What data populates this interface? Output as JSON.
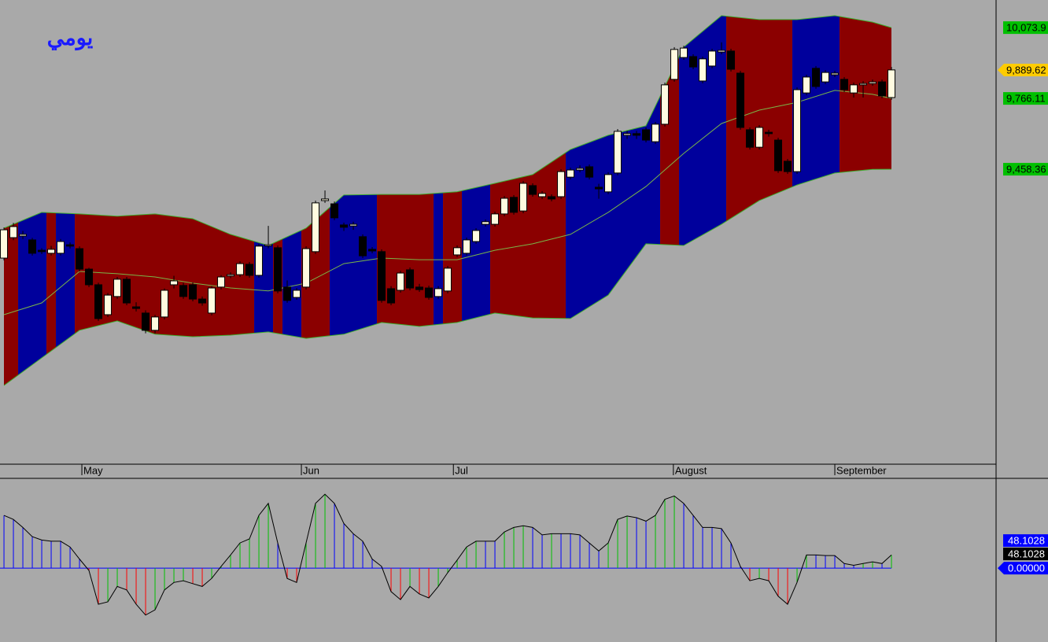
{
  "chart_data": [
    {
      "type": "candlestick",
      "title": "يومي",
      "xlim": [
        -0.42,
        105.08
      ],
      "ylim": [
        8176,
        10194
      ],
      "xticks": [
        {
          "value": 8.25,
          "label": "May"
        },
        {
          "value": 31.5,
          "label": "Jun"
        },
        {
          "value": 47.6,
          "label": "Jul"
        },
        {
          "value": 70.9,
          "label": "August"
        },
        {
          "value": 88,
          "label": "September"
        }
      ],
      "yticks": [
        {
          "value": 10073.9,
          "label": "10,073.9"
        },
        {
          "value": 9766.11,
          "label": "9,766.11"
        },
        {
          "value": 9458.36,
          "label": "9,458.36"
        }
      ],
      "last_price": {
        "value": 9889.62,
        "label": "9,889.62"
      },
      "colors": {
        "up": "#fffbe0",
        "down": "#000000",
        "band_up": "#00009c",
        "band_down": "#8b0000",
        "band_edge": "#3fae2f",
        "middle": "#7ab648",
        "tick_label_box": "#00c000",
        "last_price_box": "#ffcc00"
      },
      "open": [
        9072,
        9161,
        9168,
        9151,
        9106,
        9093,
        9093,
        9130,
        9113,
        9024,
        8956,
        8826,
        8905,
        8980,
        8860,
        8833,
        8758,
        8816,
        8956,
        8953,
        8956,
        8894,
        8833,
        8946,
        8994,
        9000,
        9045,
        8997,
        9127,
        9117,
        8946,
        8901,
        8946,
        9100,
        9322,
        9308,
        9216,
        9212,
        9165,
        9110,
        9100,
        8939,
        8932,
        9021,
        8946,
        8942,
        8905,
        8929,
        9086,
        9093,
        9144,
        9219,
        9219,
        9264,
        9336,
        9277,
        9387,
        9339,
        9339,
        9339,
        9424,
        9455,
        9469,
        9380,
        9360,
        9442,
        9606,
        9613,
        9630,
        9578,
        9654,
        9849,
        9944,
        9948,
        9842,
        9907,
        9968,
        9972,
        9876,
        9630,
        9554,
        9619,
        9585,
        9493,
        9448,
        9790,
        9897,
        9838,
        9869,
        9849,
        9790,
        9825,
        9831,
        9838,
        9770
      ],
      "high": [
        9205,
        9225,
        9190,
        9160,
        9115,
        9125,
        9155,
        9140,
        9123,
        9030,
        8965,
        8920,
        8990,
        8990,
        8880,
        8845,
        8825,
        8940,
        8995,
        8965,
        8966,
        8905,
        8950,
        8998,
        9010,
        9058,
        9055,
        9134,
        9212,
        9127,
        8975,
        8942,
        9123,
        9322,
        9366,
        9318,
        9226,
        9230,
        9175,
        9120,
        9110,
        8950,
        9017,
        9031,
        8960,
        8952,
        8950,
        9038,
        9127,
        9161,
        9202,
        9240,
        9274,
        9342,
        9346,
        9407,
        9397,
        9363,
        9349,
        9458,
        9465,
        9475,
        9479,
        9395,
        9445,
        9633,
        9625,
        9625,
        9640,
        9664,
        9835,
        9989,
        9995,
        9958,
        9948,
        9982,
        10010,
        9982,
        9886,
        9640,
        9650,
        9630,
        9595,
        9503,
        9814,
        9869,
        9907,
        9889,
        9886,
        9859,
        9835,
        9841,
        9848,
        9848,
        9903
      ],
      "low": [
        9062,
        9150,
        9155,
        9083,
        9090,
        9083,
        9083,
        9114,
        9014,
        8946,
        8799,
        8816,
        8895,
        8867,
        8840,
        8745,
        8745,
        8806,
        8940,
        8895,
        8884,
        8865,
        8823,
        8936,
        8985,
        8990,
        8987,
        8987,
        9115,
        8919,
        8878,
        8891,
        8936,
        9090,
        9312,
        9237,
        9190,
        9195,
        9072,
        9093,
        8878,
        8867,
        8922,
        8932,
        8925,
        8891,
        8895,
        8919,
        9076,
        9083,
        9134,
        9209,
        9209,
        9254,
        9261,
        9267,
        9339,
        9329,
        9319,
        9329,
        9414,
        9445,
        9414,
        9330,
        9350,
        9432,
        9590,
        9590,
        9575,
        9568,
        9644,
        9839,
        9934,
        9893,
        9832,
        9897,
        9958,
        9883,
        9630,
        9544,
        9544,
        9600,
        9442,
        9438,
        9438,
        9780,
        9808,
        9828,
        9859,
        9794,
        9770,
        9770,
        9821,
        9767,
        9760
      ],
      "close": [
        9195,
        9209,
        9175,
        9093,
        9100,
        9110,
        9144,
        9124,
        9024,
        8956,
        8809,
        8911,
        8980,
        8877,
        8853,
        8758,
        8816,
        8932,
        8973,
        8905,
        8894,
        8877,
        8942,
        8990,
        9000,
        9048,
        8997,
        9124,
        9130,
        8929,
        8888,
        8932,
        9113,
        9312,
        9329,
        9247,
        9206,
        9219,
        9082,
        9103,
        8888,
        8877,
        9007,
        8942,
        8935,
        8901,
        8939,
        9028,
        9117,
        9151,
        9192,
        9230,
        9264,
        9332,
        9271,
        9397,
        9349,
        9353,
        9329,
        9448,
        9455,
        9462,
        9424,
        9373,
        9435,
        9623,
        9613,
        9606,
        9585,
        9654,
        9825,
        9979,
        9985,
        9903,
        9938,
        9972,
        9975,
        9893,
        9640,
        9554,
        9640,
        9613,
        9452,
        9448,
        9804,
        9859,
        9818,
        9879,
        9876,
        9804,
        9825,
        9831,
        9838,
        9777,
        9890
      ],
      "bands": {
        "x": [
          0,
          4,
          8,
          12,
          16,
          20,
          24,
          28,
          32,
          36,
          40,
          44,
          48,
          52,
          56,
          60,
          64,
          68,
          72,
          76,
          80,
          84,
          88,
          92,
          94
        ],
        "upper": [
          9202,
          9271,
          9264,
          9254,
          9264,
          9243,
          9175,
          9127,
          9202,
          9346,
          9349,
          9349,
          9360,
          9397,
          9435,
          9544,
          9606,
          9647,
          9989,
          10126,
          10109,
          10109,
          10126,
          10098,
          10073.9
        ],
        "middle": [
          8826,
          8877,
          9014,
          9004,
          8990,
          8963,
          8942,
          8929,
          8963,
          9048,
          9072,
          9065,
          9065,
          9106,
          9134,
          9175,
          9271,
          9383,
          9527,
          9657,
          9715,
          9749,
          9801,
          9784,
          9766.11
        ],
        "lower": [
          8518,
          8638,
          8758,
          8799,
          8741,
          8730,
          8737,
          8751,
          8723,
          8741,
          8792,
          8775,
          8792,
          8833,
          8812,
          8809,
          8911,
          9134,
          9127,
          9219,
          9322,
          9390,
          9442,
          9458,
          9458.36
        ]
      },
      "shading": [
        {
          "start": 0,
          "end": 1,
          "trend": "down"
        },
        {
          "start": 2,
          "end": 4,
          "trend": "up"
        },
        {
          "start": 5,
          "end": 5,
          "trend": "down"
        },
        {
          "start": 6,
          "end": 7,
          "trend": "up"
        },
        {
          "start": 8,
          "end": 26,
          "trend": "down"
        },
        {
          "start": 27,
          "end": 28,
          "trend": "up"
        },
        {
          "start": 29,
          "end": 29,
          "trend": "down"
        },
        {
          "start": 30,
          "end": 31,
          "trend": "up"
        },
        {
          "start": 32,
          "end": 34,
          "trend": "down"
        },
        {
          "start": 35,
          "end": 39,
          "trend": "up"
        },
        {
          "start": 40,
          "end": 45,
          "trend": "down"
        },
        {
          "start": 46,
          "end": 46,
          "trend": "up"
        },
        {
          "start": 47,
          "end": 48,
          "trend": "down"
        },
        {
          "start": 49,
          "end": 51,
          "trend": "up"
        },
        {
          "start": 52,
          "end": 59,
          "trend": "down"
        },
        {
          "start": 60,
          "end": 69,
          "trend": "up"
        },
        {
          "start": 70,
          "end": 71,
          "trend": "down"
        },
        {
          "start": 72,
          "end": 76,
          "trend": "up"
        },
        {
          "start": 77,
          "end": 83,
          "trend": "down"
        },
        {
          "start": 84,
          "end": 88,
          "trend": "up"
        },
        {
          "start": 89,
          "end": 94,
          "trend": "down"
        }
      ]
    },
    {
      "type": "oscillator",
      "xlim": [
        -0.42,
        105.08
      ],
      "ylim": [
        -129,
        154
      ],
      "yticks": [
        {
          "value": 0,
          "label": "0.00000"
        }
      ],
      "markers": [
        {
          "value": 48.1028,
          "color": "#0000ff"
        },
        {
          "value": 48.1028,
          "color": "#000000"
        }
      ],
      "colors": {
        "up": "#00c000",
        "flat": "#0000ff",
        "down": "#ff0000",
        "line": "#000000",
        "zero": "#0000ff"
      },
      "values": [
        92,
        85,
        71,
        55,
        49,
        47,
        47,
        37,
        16,
        -4,
        -63,
        -59,
        -32,
        -38,
        -63,
        -82,
        -73,
        -38,
        -25,
        -22,
        -27,
        -32,
        -18,
        3,
        23,
        44,
        51,
        92,
        113,
        44,
        -18,
        -25,
        44,
        113,
        129,
        113,
        78,
        60,
        47,
        16,
        3,
        -41,
        -55,
        -32,
        -45,
        -52,
        -32,
        -8,
        14,
        37,
        47,
        47,
        47,
        63,
        71,
        74,
        71,
        58,
        60,
        60,
        60,
        58,
        44,
        30,
        44,
        85,
        91,
        88,
        82,
        92,
        120,
        126,
        113,
        92,
        71,
        71,
        69,
        44,
        3,
        -22,
        -18,
        -22,
        -49,
        -63,
        -25,
        23,
        23,
        22,
        22,
        8,
        5,
        8,
        11,
        8,
        23
      ]
    }
  ]
}
